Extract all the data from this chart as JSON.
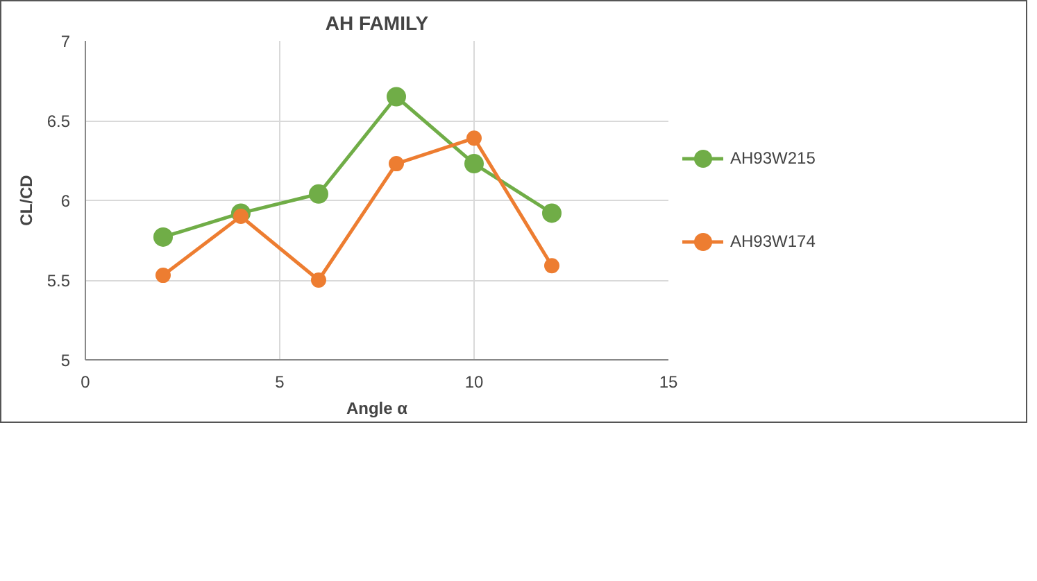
{
  "chart_data": {
    "type": "line",
    "title": "AH FAMILY",
    "xlabel": "Angle α",
    "ylabel": "CL/CD",
    "x": [
      2,
      4,
      6,
      8,
      10,
      12
    ],
    "series": [
      {
        "name": "AH93W215",
        "color": "#70ad47",
        "values": [
          5.77,
          5.92,
          6.04,
          6.65,
          6.23,
          5.92
        ]
      },
      {
        "name": "AH93W174",
        "color": "#ed7d31",
        "values": [
          5.53,
          5.9,
          5.5,
          6.23,
          6.39,
          5.59
        ]
      }
    ],
    "xlim": [
      0,
      15
    ],
    "xticks": [
      0,
      5,
      10,
      15
    ],
    "ylim": [
      5,
      7
    ],
    "yticks": [
      5,
      5.5,
      6,
      6.5,
      7
    ],
    "grid": true,
    "legend": "right",
    "marker": "circle",
    "line_style": "solid"
  }
}
